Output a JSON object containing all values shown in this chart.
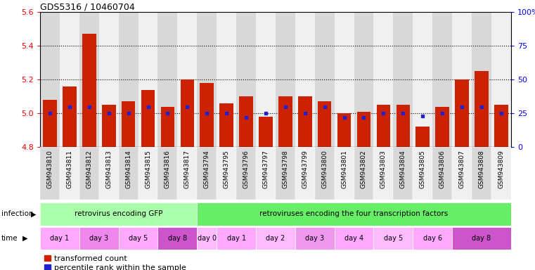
{
  "title": "GDS5316 / 10460704",
  "samples": [
    "GSM943810",
    "GSM943811",
    "GSM943812",
    "GSM943813",
    "GSM943814",
    "GSM943815",
    "GSM943816",
    "GSM943817",
    "GSM943794",
    "GSM943795",
    "GSM943796",
    "GSM943797",
    "GSM943798",
    "GSM943799",
    "GSM943800",
    "GSM943801",
    "GSM943802",
    "GSM943803",
    "GSM943804",
    "GSM943805",
    "GSM943806",
    "GSM943807",
    "GSM943808",
    "GSM943809"
  ],
  "red_values": [
    5.08,
    5.16,
    5.47,
    5.05,
    5.07,
    5.14,
    5.04,
    5.2,
    5.18,
    5.06,
    5.1,
    4.98,
    5.1,
    5.1,
    5.07,
    5.0,
    5.01,
    5.05,
    5.05,
    4.92,
    5.04,
    5.2,
    5.25,
    5.05
  ],
  "blue_values": [
    25,
    30,
    30,
    25,
    25,
    30,
    25,
    30,
    25,
    25,
    22,
    25,
    30,
    25,
    30,
    22,
    22,
    25,
    25,
    23,
    25,
    30,
    30,
    25
  ],
  "ylim_left": [
    4.8,
    5.6
  ],
  "ylim_right": [
    0,
    100
  ],
  "yticks_left": [
    4.8,
    5.0,
    5.2,
    5.4,
    5.6
  ],
  "yticks_right": [
    0,
    25,
    50,
    75,
    100
  ],
  "ytick_labels_right": [
    "0",
    "25",
    "50",
    "75",
    "100%"
  ],
  "bar_color": "#cc2200",
  "blue_color": "#2222cc",
  "bg_colors": [
    "#d8d8d8",
    "#f0f0f0",
    "#d8d8d8",
    "#f0f0f0",
    "#d8d8d8",
    "#f0f0f0",
    "#d8d8d8",
    "#f0f0f0",
    "#d8d8d8",
    "#f0f0f0",
    "#d8d8d8",
    "#f0f0f0",
    "#d8d8d8",
    "#f0f0f0",
    "#d8d8d8",
    "#f0f0f0",
    "#d8d8d8",
    "#f0f0f0",
    "#d8d8d8",
    "#f0f0f0",
    "#d8d8d8",
    "#f0f0f0",
    "#d8d8d8",
    "#f0f0f0"
  ],
  "infection_groups": [
    {
      "label": "retrovirus encoding GFP",
      "start": 0,
      "end": 7,
      "color": "#aaffaa"
    },
    {
      "label": "retroviruses encoding the four transcription factors",
      "start": 8,
      "end": 23,
      "color": "#66ee66"
    }
  ],
  "time_groups": [
    {
      "label": "day 1",
      "start": 0,
      "end": 1,
      "color": "#ffaaff"
    },
    {
      "label": "day 3",
      "start": 2,
      "end": 3,
      "color": "#ee88ee"
    },
    {
      "label": "day 5",
      "start": 4,
      "end": 5,
      "color": "#ffaaff"
    },
    {
      "label": "day 8",
      "start": 6,
      "end": 7,
      "color": "#cc55cc"
    },
    {
      "label": "day 0",
      "start": 8,
      "end": 8,
      "color": "#ffbbff"
    },
    {
      "label": "day 1",
      "start": 9,
      "end": 10,
      "color": "#ffaaff"
    },
    {
      "label": "day 2",
      "start": 11,
      "end": 12,
      "color": "#ffbbff"
    },
    {
      "label": "day 3",
      "start": 13,
      "end": 14,
      "color": "#ee99ee"
    },
    {
      "label": "day 4",
      "start": 15,
      "end": 16,
      "color": "#ffaaff"
    },
    {
      "label": "day 5",
      "start": 17,
      "end": 18,
      "color": "#ffbbff"
    },
    {
      "label": "day 6",
      "start": 19,
      "end": 20,
      "color": "#ffaaff"
    },
    {
      "label": "day 8",
      "start": 21,
      "end": 23,
      "color": "#cc55cc"
    }
  ]
}
